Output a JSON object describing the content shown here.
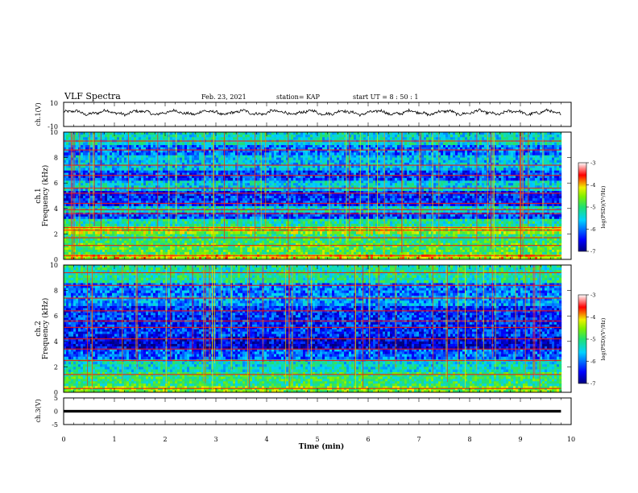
{
  "header": {
    "title": "VLF Spectra",
    "date": "Feb. 23, 2021",
    "station": "station= KAP",
    "start": "start  UT  =   8  : 50 : 1"
  },
  "chart_data": [
    {
      "type": "line",
      "ylabel": "ch.1(V)",
      "ylim": [
        -10,
        10
      ],
      "yticks": [
        "10",
        "-10"
      ],
      "xlim": [
        0,
        10
      ],
      "description_level": "waveform oscillating roughly between -2 and +3 V around +2",
      "series": [
        {
          "x_range": [
            0,
            9.8
          ],
          "mean": 1.5,
          "amplitude": 2.5
        }
      ]
    },
    {
      "type": "heatmap",
      "ylabel": "ch.1",
      "ylabel2": "Frequency  (kHz)",
      "ylim": [
        0,
        10
      ],
      "yticks": [
        "0",
        "2",
        "4",
        "6",
        "8",
        "10"
      ],
      "xlim": [
        0,
        10
      ],
      "data_x_range": [
        0,
        9.8
      ],
      "colorbar": {
        "label": "log(PSD)(V²/Hz)",
        "ticks": [
          "-3",
          "-4",
          "-5",
          "-6",
          "-7"
        ],
        "range": [
          -7,
          -3
        ]
      },
      "bands_khz": [
        {
          "lo": 0.0,
          "hi": 0.4,
          "level": -4.2
        },
        {
          "lo": 0.4,
          "hi": 1.3,
          "level": -4.8
        },
        {
          "lo": 1.3,
          "hi": 2.0,
          "level": -5.0
        },
        {
          "lo": 2.0,
          "hi": 2.6,
          "level": -4.5
        },
        {
          "lo": 2.6,
          "hi": 3.2,
          "level": -5.2
        },
        {
          "lo": 3.2,
          "hi": 3.7,
          "level": -6.2
        },
        {
          "lo": 3.7,
          "hi": 4.2,
          "level": -5.4
        },
        {
          "lo": 4.2,
          "hi": 5.4,
          "level": -6.3
        },
        {
          "lo": 5.4,
          "hi": 6.2,
          "level": -5.5
        },
        {
          "lo": 6.2,
          "hi": 7.0,
          "level": -6.2
        },
        {
          "lo": 7.0,
          "hi": 8.2,
          "level": -5.6
        },
        {
          "lo": 8.2,
          "hi": 9.0,
          "level": -6.0
        },
        {
          "lo": 9.0,
          "hi": 10.0,
          "level": -5.4
        }
      ],
      "lines_khz": [
        0.3,
        1.1,
        1.7,
        2.3,
        2.5,
        3.6,
        3.9,
        4.4,
        5.2,
        5.6,
        6.6,
        7.4,
        8.6,
        9.3
      ]
    },
    {
      "type": "heatmap",
      "ylabel": "ch.2",
      "ylabel2": "Frequency  (kHz)",
      "ylim": [
        0,
        10
      ],
      "yticks": [
        "0",
        "2",
        "4",
        "6",
        "8",
        "10"
      ],
      "xlim": [
        0,
        10
      ],
      "data_x_range": [
        0,
        9.8
      ],
      "colorbar": {
        "label": "log(PSD)(V²/Hz)",
        "ticks": [
          "-3",
          "-4",
          "-5",
          "-6",
          "-7"
        ],
        "range": [
          -7,
          -3
        ]
      },
      "bands_khz": [
        {
          "lo": 0.0,
          "hi": 0.5,
          "level": -4.6
        },
        {
          "lo": 0.5,
          "hi": 1.6,
          "level": -5.0
        },
        {
          "lo": 1.6,
          "hi": 2.6,
          "level": -5.4
        },
        {
          "lo": 2.6,
          "hi": 3.4,
          "level": -6.1
        },
        {
          "lo": 3.4,
          "hi": 4.4,
          "level": -6.6
        },
        {
          "lo": 4.4,
          "hi": 6.8,
          "level": -6.3
        },
        {
          "lo": 6.8,
          "hi": 7.6,
          "level": -5.8
        },
        {
          "lo": 7.6,
          "hi": 8.6,
          "level": -6.0
        },
        {
          "lo": 8.6,
          "hi": 10.0,
          "level": -5.2
        }
      ],
      "lines_khz": [
        0.3,
        1.4,
        2.5,
        3.4,
        4.2,
        5.1,
        5.6,
        6.4,
        7.4,
        8.4,
        9.4
      ]
    },
    {
      "type": "line",
      "ylabel": "ch.3(V)",
      "ylim": [
        -5,
        5
      ],
      "yticks": [
        "5",
        "0",
        "-5"
      ],
      "xlim": [
        0,
        10
      ],
      "xticks": [
        "0",
        "1",
        "2",
        "3",
        "4",
        "5",
        "6",
        "7",
        "8",
        "9",
        "10"
      ],
      "xlabel": "Time  (min)",
      "series": [
        {
          "x_range": [
            0,
            9.8
          ],
          "value": 0,
          "band_halfwidth": 0.5
        }
      ]
    }
  ]
}
